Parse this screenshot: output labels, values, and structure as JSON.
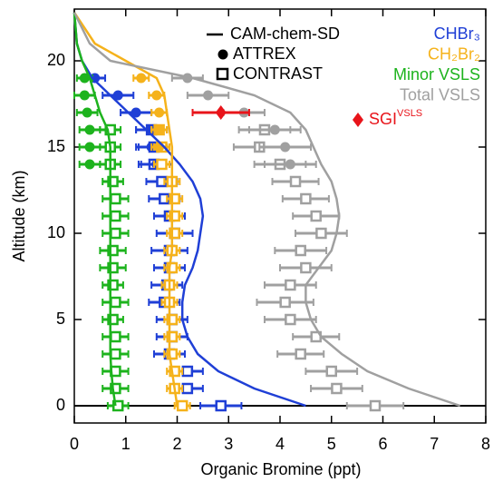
{
  "chart_data": {
    "type": "profile",
    "xlabel": "Organic Bromine (ppt)",
    "ylabel": "Altitude (km)",
    "xlim": [
      0,
      8
    ],
    "ylim": [
      -1,
      23
    ],
    "xticks": [
      0,
      1,
      2,
      3,
      4,
      5,
      6,
      7,
      8
    ],
    "yticks": [
      0,
      5,
      10,
      15,
      20
    ],
    "legend": {
      "model": "CAM-chem-SD",
      "attrex": "ATTREX",
      "contrast": "CONTRAST"
    },
    "series": [
      {
        "name": "CHBr₃",
        "color": "#1f3fd6",
        "model": {
          "x": [
            4.5,
            3.5,
            2.8,
            2.4,
            2.2,
            2.1,
            2.1,
            2.15,
            2.3,
            2.4,
            2.45,
            2.5,
            2.45,
            2.3,
            2.05,
            1.75,
            1.4,
            1.05,
            0.7,
            0.35,
            0.15,
            0.05,
            0
          ],
          "y": [
            0,
            1,
            2,
            3,
            4,
            5,
            6,
            7,
            8,
            9,
            10,
            11,
            12,
            13,
            14,
            15,
            16,
            17,
            18,
            19,
            20,
            21,
            22.8
          ]
        },
        "attrex": {
          "x": [
            1.6,
            1.5,
            1.5,
            1.2,
            0.85,
            0.4
          ],
          "y": [
            14,
            15,
            16,
            17,
            18,
            19
          ],
          "xerr": [
            0.3,
            0.3,
            0.3,
            0.3,
            0.3,
            0.2
          ]
        },
        "contrast": {
          "x": [
            2.85,
            2.2,
            2.2,
            1.85,
            1.9,
            1.9,
            1.75,
            1.8,
            1.85,
            1.85,
            1.95,
            1.85,
            1.75,
            1.7,
            1.55,
            1.55,
            1.5
          ],
          "y": [
            0,
            1,
            2,
            3,
            4,
            5,
            6,
            7,
            8,
            9,
            10,
            11,
            12,
            13,
            14,
            15,
            16
          ],
          "xerr": [
            0.4,
            0.3,
            0.3,
            0.3,
            0.3,
            0.3,
            0.3,
            0.3,
            0.3,
            0.35,
            0.35,
            0.3,
            0.3,
            0.3,
            0.3,
            0.3,
            0.3
          ]
        }
      },
      {
        "name": "CH₂Br₂",
        "color": "#f5b21b",
        "model": {
          "x": [
            2.0,
            1.95,
            1.9,
            1.85,
            1.85,
            1.85,
            1.85,
            1.85,
            1.85,
            1.9,
            1.9,
            1.9,
            1.9,
            1.9,
            1.9,
            1.9,
            1.85,
            1.8,
            1.75,
            1.6,
            1.0,
            0.4,
            0
          ],
          "y": [
            0,
            1,
            2,
            3,
            4,
            5,
            6,
            7,
            8,
            9,
            10,
            11,
            12,
            13,
            14,
            15,
            16,
            17,
            18,
            19,
            20,
            21,
            22.8
          ]
        },
        "attrex": {
          "x": [
            1.65,
            1.65,
            1.65,
            1.6,
            1.3
          ],
          "y": [
            15,
            16,
            17,
            18,
            19
          ],
          "xerr": [
            0.15,
            0.15,
            0.15,
            0.15,
            0.15
          ]
        },
        "contrast": {
          "x": [
            2.1,
            1.95,
            1.95,
            1.9,
            1.9,
            1.9,
            1.85,
            1.85,
            1.9,
            1.9,
            1.95,
            1.95,
            1.95,
            1.9,
            1.7,
            1.7,
            1.65
          ],
          "y": [
            0,
            1,
            2,
            3,
            4,
            5,
            6,
            7,
            8,
            9,
            10,
            11,
            12,
            13,
            14,
            15,
            16
          ],
          "xerr": [
            0.15,
            0.15,
            0.15,
            0.15,
            0.15,
            0.15,
            0.15,
            0.15,
            0.15,
            0.15,
            0.15,
            0.15,
            0.15,
            0.15,
            0.15,
            0.15,
            0.15
          ]
        }
      },
      {
        "name": "Minor VSLS",
        "color": "#1db31d",
        "model": {
          "x": [
            0.8,
            0.75,
            0.72,
            0.7,
            0.7,
            0.7,
            0.7,
            0.7,
            0.7,
            0.7,
            0.7,
            0.7,
            0.7,
            0.7,
            0.7,
            0.7,
            0.65,
            0.5,
            0.4,
            0.3,
            0.15,
            0.05,
            0
          ],
          "y": [
            0,
            1,
            2,
            3,
            4,
            5,
            6,
            7,
            8,
            9,
            10,
            11,
            12,
            13,
            14,
            15,
            16,
            17,
            18,
            19,
            20,
            21,
            22.8
          ]
        },
        "attrex": {
          "x": [
            0.3,
            0.3,
            0.3,
            0.25,
            0.2,
            0.2
          ],
          "y": [
            14,
            15,
            16,
            17,
            18,
            19
          ],
          "xerr": [
            0.2,
            0.2,
            0.2,
            0.2,
            0.2,
            0.15
          ]
        },
        "contrast": {
          "x": [
            0.85,
            0.8,
            0.8,
            0.8,
            0.8,
            0.75,
            0.8,
            0.75,
            0.75,
            0.75,
            0.8,
            0.8,
            0.8,
            0.75,
            0.7,
            0.7,
            0.7
          ],
          "y": [
            0,
            1,
            2,
            3,
            4,
            5,
            6,
            7,
            8,
            9,
            10,
            11,
            12,
            13,
            14,
            15,
            16
          ],
          "xerr": [
            0.2,
            0.25,
            0.25,
            0.25,
            0.25,
            0.2,
            0.25,
            0.2,
            0.25,
            0.25,
            0.25,
            0.25,
            0.25,
            0.2,
            0.2,
            0.2,
            0.2
          ]
        }
      },
      {
        "name": "Total VSLS",
        "color": "#a0a0a0",
        "model": {
          "x": [
            7.5,
            6.5,
            5.7,
            5.2,
            4.8,
            4.6,
            4.5,
            4.5,
            4.75,
            5.0,
            5.1,
            5.15,
            5.1,
            5.0,
            4.8,
            4.65,
            4.5,
            4.2,
            3.5,
            2.3,
            0.7,
            0.3,
            0
          ],
          "y": [
            0,
            1,
            2,
            3,
            4,
            5,
            6,
            7,
            8,
            9,
            10,
            11,
            12,
            13,
            14,
            15,
            16,
            17,
            18,
            19,
            20,
            21,
            22.8
          ]
        },
        "attrex": {
          "x": [
            4.2,
            4.1,
            3.9,
            3.3,
            2.6,
            2.2
          ],
          "y": [
            14,
            15,
            16,
            17,
            18,
            19
          ],
          "xerr": [
            0.5,
            0.5,
            0.5,
            0.4,
            0.4,
            0.3
          ]
        },
        "contrast": {
          "x": [
            5.85,
            5.1,
            5.0,
            4.4,
            4.7,
            4.2,
            4.1,
            4.2,
            4.5,
            4.4,
            4.8,
            4.7,
            4.5,
            4.3,
            4.0,
            3.6,
            3.7
          ],
          "y": [
            0,
            1,
            2,
            3,
            4,
            5,
            6,
            7,
            8,
            9,
            10,
            11,
            12,
            13,
            14,
            15,
            16
          ],
          "xerr": [
            0.55,
            0.5,
            0.5,
            0.45,
            0.45,
            0.5,
            0.55,
            0.5,
            0.5,
            0.5,
            0.5,
            0.45,
            0.45,
            0.45,
            0.5,
            0.5,
            0.5
          ]
        }
      }
    ],
    "sgi": {
      "name": "SGI",
      "superscript": "VSLS",
      "color": "#e8141a",
      "x": [
        2.85
      ],
      "y": [
        17
      ],
      "xerr": [
        0.55
      ]
    }
  }
}
